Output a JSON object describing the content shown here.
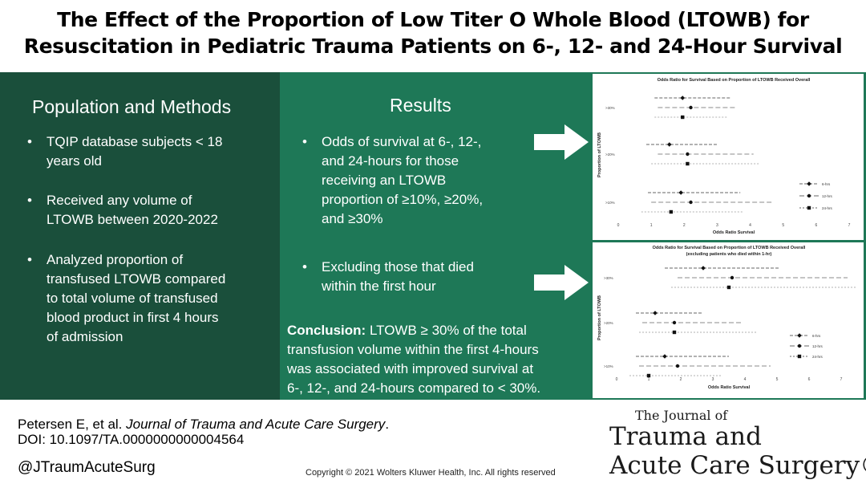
{
  "title_line1": "The Effect of the Proportion of Low Titer O Whole Blood (LTOWB) for",
  "title_line2": "Resuscitation in Pediatric Trauma Patients on 6-, 12- and 24-Hour Survival",
  "population": {
    "heading": "Population and Methods",
    "bullets": [
      [
        "TQIP database subjects < 18",
        "years old"
      ],
      [
        "Received any volume of",
        "LTOWB between 2020-2022"
      ],
      [
        "Analyzed proportion of",
        "transfused LTOWB compared",
        "to total volume of transfused",
        "blood product in first 4 hours",
        "of admission"
      ]
    ]
  },
  "results": {
    "heading": "Results",
    "bullets": [
      [
        "Odds of survival at 6-, 12-,",
        "and 24-hours for those",
        "receiving an LTOWB",
        "proportion of  ≥10%, ≥20%,",
        "and ≥30%"
      ],
      [
        "Excluding those that died",
        "within the first hour"
      ]
    ],
    "conclusion_label": "Conclusion:",
    "conclusion_lines": [
      " LTOWB ≥ 30% of the total",
      "transfusion volume within the first 4-hours",
      "was associated with improved survival at",
      "6-, 12-, and 24-hours compared to < 30%."
    ]
  },
  "chart_data": [
    {
      "type": "scatter",
      "title": "Odds Ratio for Survival Based on Proportion of LTOWB Received Overall",
      "subtitle": "",
      "xlabel": "Odds Ratio Survival",
      "ylabel": "Proportion of LTOWB",
      "xlim": [
        0,
        7
      ],
      "xticks": [
        "0",
        "1",
        "2",
        "3",
        "4",
        "5",
        "6",
        "7"
      ],
      "groups": [
        ">30%",
        ">20%",
        ">10%"
      ],
      "series": [
        {
          "name": "6-hrs",
          "marker": "diamond",
          "points": [
            {
              "group": ">30%",
              "or": 1.95,
              "lo": 1.1,
              "hi": 3.4
            },
            {
              "group": ">20%",
              "or": 1.55,
              "lo": 0.85,
              "hi": 3.0
            },
            {
              "group": ">10%",
              "or": 1.9,
              "lo": 0.9,
              "hi": 3.7
            }
          ]
        },
        {
          "name": "12-hrs",
          "marker": "circle",
          "points": [
            {
              "group": ">30%",
              "or": 2.2,
              "lo": 1.2,
              "hi": 3.6
            },
            {
              "group": ">20%",
              "or": 2.1,
              "lo": 1.2,
              "hi": 4.1
            },
            {
              "group": ">10%",
              "or": 2.2,
              "lo": 1.0,
              "hi": 4.7
            }
          ]
        },
        {
          "name": "24-hrs",
          "marker": "square",
          "points": [
            {
              "group": ">30%",
              "or": 1.95,
              "lo": 1.1,
              "hi": 3.3
            },
            {
              "group": ">20%",
              "or": 2.1,
              "lo": 1.0,
              "hi": 4.3
            },
            {
              "group": ">10%",
              "or": 1.6,
              "lo": 0.7,
              "hi": 3.8
            }
          ]
        }
      ]
    },
    {
      "type": "scatter",
      "title": "Odds Ratio for Survival Based on Proportion of LTOWB Received Overall",
      "subtitle": "(excluding patients who died within 1-hr)",
      "xlabel": "Odds Ratio Survival",
      "ylabel": "Proportion of LTOWB",
      "xlim": [
        0,
        7
      ],
      "xticks": [
        "0",
        "1",
        "2",
        "3",
        "4",
        "5",
        "6",
        "7"
      ],
      "groups": [
        ">30%",
        ">20%",
        ">10%"
      ],
      "series": [
        {
          "name": "6-hrs",
          "marker": "diamond",
          "points": [
            {
              "group": ">30%",
              "or": 2.7,
              "lo": 1.5,
              "hi": 5.1
            },
            {
              "group": ">20%",
              "or": 1.2,
              "lo": 0.6,
              "hi": 2.7
            },
            {
              "group": ">10%",
              "or": 1.5,
              "lo": 0.6,
              "hi": 3.5
            }
          ]
        },
        {
          "name": "12-hrs",
          "marker": "circle",
          "points": [
            {
              "group": ">30%",
              "or": 3.6,
              "lo": 1.9,
              "hi": 7.2
            },
            {
              "group": ">20%",
              "or": 1.8,
              "lo": 0.8,
              "hi": 3.9
            },
            {
              "group": ">10%",
              "or": 1.9,
              "lo": 0.7,
              "hi": 4.8
            }
          ]
        },
        {
          "name": "24-hrs",
          "marker": "square",
          "points": [
            {
              "group": ">30%",
              "or": 3.5,
              "lo": 1.7,
              "hi": 7.5
            },
            {
              "group": ">20%",
              "or": 1.8,
              "lo": 0.7,
              "hi": 4.4
            },
            {
              "group": ">10%",
              "or": 1.0,
              "lo": 0.4,
              "hi": 3.3
            }
          ]
        }
      ]
    }
  ],
  "footer": {
    "citation_authors": "Petersen E, et al. ",
    "citation_journal": "Journal of Trauma and Acute Care Surgery",
    "citation_end": ".",
    "doi": "DOI: 10.1097/TA.0000000000004564",
    "handle": "@JTraumAcuteSurg",
    "copyright": "Copyright © 2021  Wolters Kluwer Health, Inc. All rights reserved"
  },
  "logo": {
    "line1": "The Journal of",
    "line2": "Trauma and",
    "line3": "Acute Care Surgery®"
  },
  "colors": {
    "dark_green": "#1a4f3b",
    "medium_green": "#1e7857"
  }
}
